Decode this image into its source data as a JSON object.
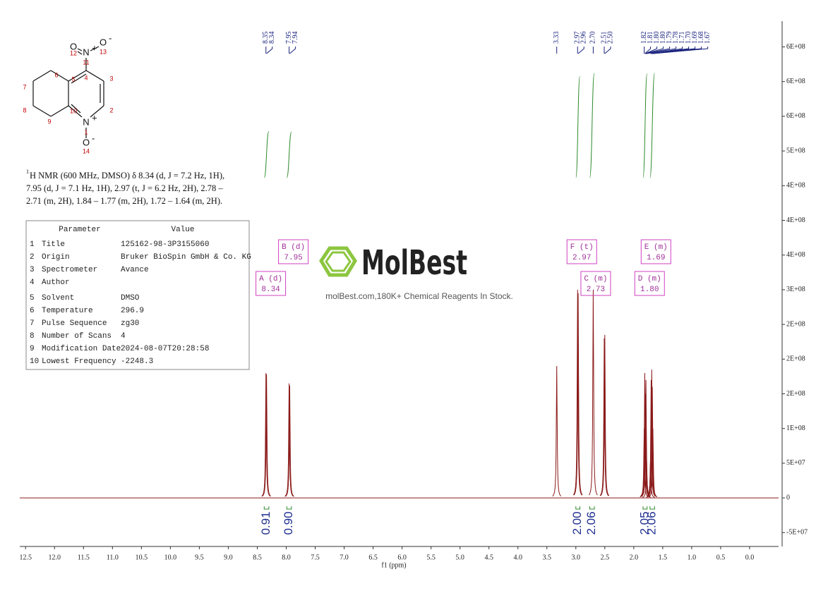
{
  "chart_data": {
    "type": "nmr",
    "x_label": "f1 (ppm)",
    "xlim": [
      12.6,
      -0.5
    ],
    "xticks": [
      12.5,
      {
        "value": 12,
        "label": "12.0"
      },
      11.5,
      {
        "value": 11,
        "label": "11.0"
      },
      10.5,
      {
        "value": 10,
        "label": "10.0"
      },
      9.5,
      {
        "value": 9,
        "label": "9.0"
      },
      8.5,
      {
        "value": 8,
        "label": "8.0"
      },
      7.5,
      {
        "value": 7,
        "label": "7.0"
      },
      6.5,
      {
        "value": 6,
        "label": "6.0"
      },
      5.5,
      {
        "value": 5,
        "label": "5.0"
      },
      4.5,
      {
        "value": 4,
        "label": "4.0"
      },
      3.5,
      {
        "value": 3,
        "label": "3.0"
      },
      2.5,
      {
        "value": 2,
        "label": "2.0"
      },
      1.5,
      {
        "value": 1,
        "label": "1.0"
      },
      0.5,
      {
        "value": 0,
        "label": "0.0"
      }
    ],
    "ylim": [
      -70000000,
      680000000
    ],
    "yticks": [
      {
        "value": 650000000,
        "label": "6E+08"
      },
      {
        "value": 600000000,
        "label": "6E+08"
      },
      {
        "value": 550000000,
        "label": "6E+08"
      },
      {
        "value": 500000000,
        "label": "5E+08"
      },
      {
        "value": 450000000,
        "label": "4E+08"
      },
      {
        "value": 400000000,
        "label": "4E+08"
      },
      {
        "value": 350000000,
        "label": "4E+08"
      },
      {
        "value": 300000000,
        "label": "3E+08"
      },
      {
        "value": 250000000,
        "label": "2E+08"
      },
      {
        "value": 200000000,
        "label": "2E+08"
      },
      {
        "value": 150000000,
        "label": "2E+08"
      },
      {
        "value": 100000000,
        "label": "1E+08"
      },
      {
        "value": 50000000,
        "label": "5E+07"
      },
      0,
      {
        "value": -50000000,
        "label": "-5E+07"
      }
    ],
    "line_color": "#8b1a1a",
    "peaks": {
      "x": [
        8.35,
        8.34,
        7.95,
        7.94,
        3.33,
        2.97,
        2.96,
        2.7,
        2.51,
        2.5,
        1.82,
        1.81,
        1.8,
        1.8,
        1.79,
        1.78,
        1.71,
        1.7,
        1.69,
        1.68,
        1.67
      ],
      "labels": [
        "8.35",
        "8.34",
        "7.95",
        "7.94",
        "3.33",
        "2.97",
        "2.96",
        "2.70",
        "2.51",
        "2.50",
        "1.82",
        "1.81",
        "1.80",
        "1.80",
        "1.79",
        "1.78",
        "1.71",
        "1.70",
        "1.69",
        "1.68",
        "1.67"
      ],
      "values": [
        180000000,
        178000000,
        165000000,
        162000000,
        190000000,
        300000000,
        295000000,
        300000000,
        230000000,
        235000000,
        100000000,
        180000000,
        150000000,
        140000000,
        170000000,
        60000000,
        60000000,
        170000000,
        185000000,
        160000000,
        100000000
      ]
    },
    "integrals": {
      "ranges": [
        [
          8.38,
          8.3
        ],
        [
          7.99,
          7.91
        ],
        [
          3.0,
          2.93
        ],
        [
          2.76,
          2.68
        ],
        [
          1.84,
          1.77
        ],
        [
          1.72,
          1.64
        ]
      ],
      "values": [
        0.91,
        0.9,
        2,
        2.06,
        2.05,
        2.06
      ],
      "value_labels": [
        "0.91",
        "0.90",
        "2.00",
        "2.06",
        "2.05",
        "2.06"
      ]
    },
    "multiplets": [
      {
        "name": "A (d)",
        "shift": 8.34
      },
      {
        "name": "B (d)",
        "shift": 7.95
      },
      {
        "name": "C (m)",
        "shift": 2.73
      },
      {
        "name": "D (m)",
        "shift": 1.8,
        "shift_label": "1.80"
      },
      {
        "name": "E (m)",
        "shift": 1.69
      },
      {
        "name": "F (t)",
        "shift": 2.97
      }
    ]
  },
  "structure": {
    "atoms": [
      {
        "symbol": "N",
        "charge": "+"
      },
      {
        "symbol": "O"
      },
      {
        "symbol": "O",
        "charge": "-"
      },
      {
        "symbol": "N",
        "charge": "+"
      },
      {
        "symbol": "O",
        "charge": "-"
      }
    ],
    "numbers": [
      "1",
      "2",
      "3",
      "4",
      "5",
      "6",
      "7",
      "8",
      "9",
      "10",
      "11",
      "12",
      "13",
      "14"
    ]
  },
  "description": {
    "superscript": "1",
    "lines": [
      "H NMR (600 MHz, DMSO) δ 8.34 (d, J = 7.2 Hz, 1H),",
      "7.95 (d, J = 7.1 Hz, 1H), 2.97 (t, J = 6.2 Hz, 2H), 2.78 –",
      "2.71 (m, 2H), 1.84 – 1.77 (m, 2H), 1.72 – 1.64 (m, 2H)."
    ]
  },
  "parameters": {
    "headers": [
      "Parameter",
      "Value"
    ],
    "rows": [
      [
        "1",
        "Title",
        "125162-98-3P3155060"
      ],
      [
        "2",
        "Origin",
        "Bruker BioSpin GmbH & Co. KG"
      ],
      [
        "3",
        "Spectrometer",
        "Avance"
      ],
      [
        "4",
        "Author",
        ""
      ],
      [
        "5",
        "Solvent",
        "DMSO"
      ],
      [
        "6",
        "Temperature",
        "296.9"
      ],
      [
        "7",
        "Pulse Sequence",
        "zg30"
      ],
      [
        "8",
        "Number of Scans",
        "4"
      ],
      [
        "9",
        "Modification Date",
        "2024-08-07T20:28:58"
      ],
      [
        "10",
        "Lowest Frequency",
        "-2248.3"
      ]
    ]
  },
  "watermark": {
    "brand": "MolBest",
    "tagline": "molBest.com,180K+ Chemical Reagents In Stock."
  }
}
